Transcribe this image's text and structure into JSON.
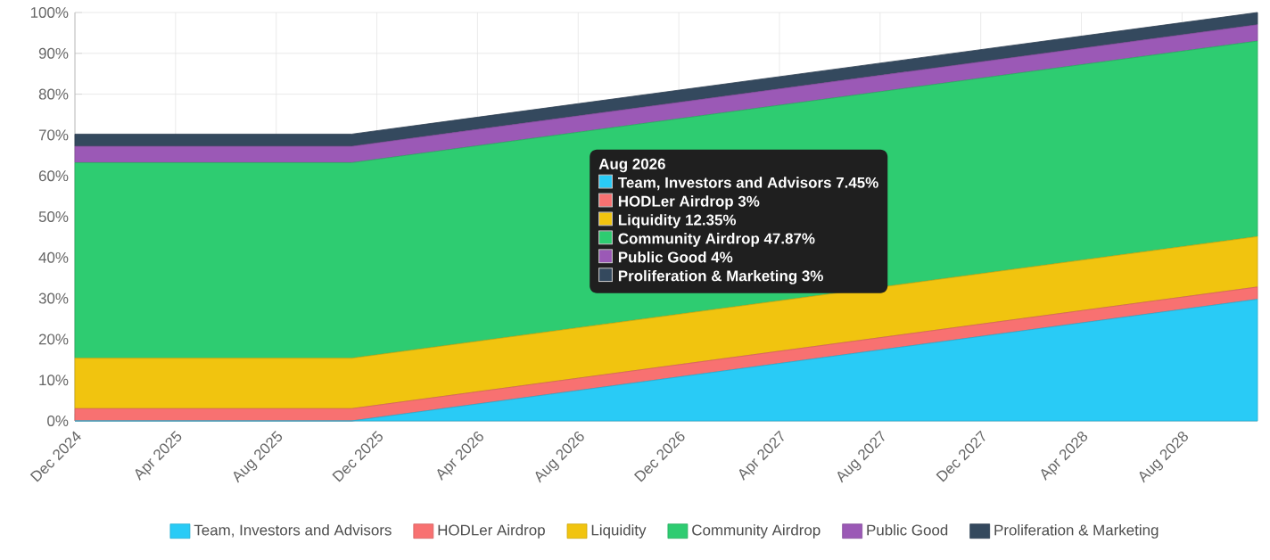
{
  "chart_data": {
    "type": "area",
    "stacked": true,
    "grid": true,
    "legend": "bottom",
    "x": [
      "2024-12",
      "2025-11",
      "2026-08",
      "2028-11"
    ],
    "xlim": [
      "2024-12",
      "2028-11"
    ],
    "xticks": [
      {
        "value": "2024-12",
        "label": "Dec 2024"
      },
      {
        "value": "2025-04",
        "label": "Apr 2025"
      },
      {
        "value": "2025-08",
        "label": "Aug 2025"
      },
      {
        "value": "2025-12",
        "label": "Dec 2025"
      },
      {
        "value": "2026-04",
        "label": "Apr 2026"
      },
      {
        "value": "2026-08",
        "label": "Aug 2026"
      },
      {
        "value": "2026-12",
        "label": "Dec 2026"
      },
      {
        "value": "2027-04",
        "label": "Apr 2027"
      },
      {
        "value": "2027-08",
        "label": "Aug 2027"
      },
      {
        "value": "2027-12",
        "label": "Dec 2027"
      },
      {
        "value": "2028-04",
        "label": "Apr 2028"
      },
      {
        "value": "2028-08",
        "label": "Aug 2028"
      }
    ],
    "ylim": [
      0,
      100
    ],
    "yticks": [
      {
        "value": 0,
        "label": "0%"
      },
      {
        "value": 10,
        "label": "10%"
      },
      {
        "value": 20,
        "label": "20%"
      },
      {
        "value": 30,
        "label": "30%"
      },
      {
        "value": 40,
        "label": "40%"
      },
      {
        "value": 50,
        "label": "50%"
      },
      {
        "value": 60,
        "label": "60%"
      },
      {
        "value": 70,
        "label": "70%"
      },
      {
        "value": 80,
        "label": "80%"
      },
      {
        "value": 90,
        "label": "90%"
      },
      {
        "value": 100,
        "label": "100%"
      }
    ],
    "series": [
      {
        "name": "Team, Investors and Advisors",
        "color": "#29cbf6",
        "values": [
          0,
          0,
          7.45,
          29.78
        ]
      },
      {
        "name": "HODLer Airdrop",
        "color": "#f87171",
        "values": [
          3,
          3,
          3,
          3
        ]
      },
      {
        "name": "Liquidity",
        "color": "#f1c40f",
        "values": [
          12.35,
          12.35,
          12.35,
          12.35
        ]
      },
      {
        "name": "Community Airdrop",
        "color": "#2ecc71",
        "values": [
          47.87,
          47.87,
          47.87,
          47.87
        ]
      },
      {
        "name": "Public Good",
        "color": "#9b59b6",
        "values": [
          4,
          4,
          4,
          4
        ]
      },
      {
        "name": "Proliferation & Marketing",
        "color": "#34495e",
        "values": [
          3,
          3,
          3,
          3
        ]
      }
    ],
    "annotations": [
      "Aug 2026",
      "Team, Investors and Advisors 7.45%",
      "HODLer Airdrop 3%",
      "Liquidity 12.35%",
      "Community Airdrop 47.87%",
      "Public Good 4%",
      "Proliferation & Marketing 3%"
    ]
  }
}
